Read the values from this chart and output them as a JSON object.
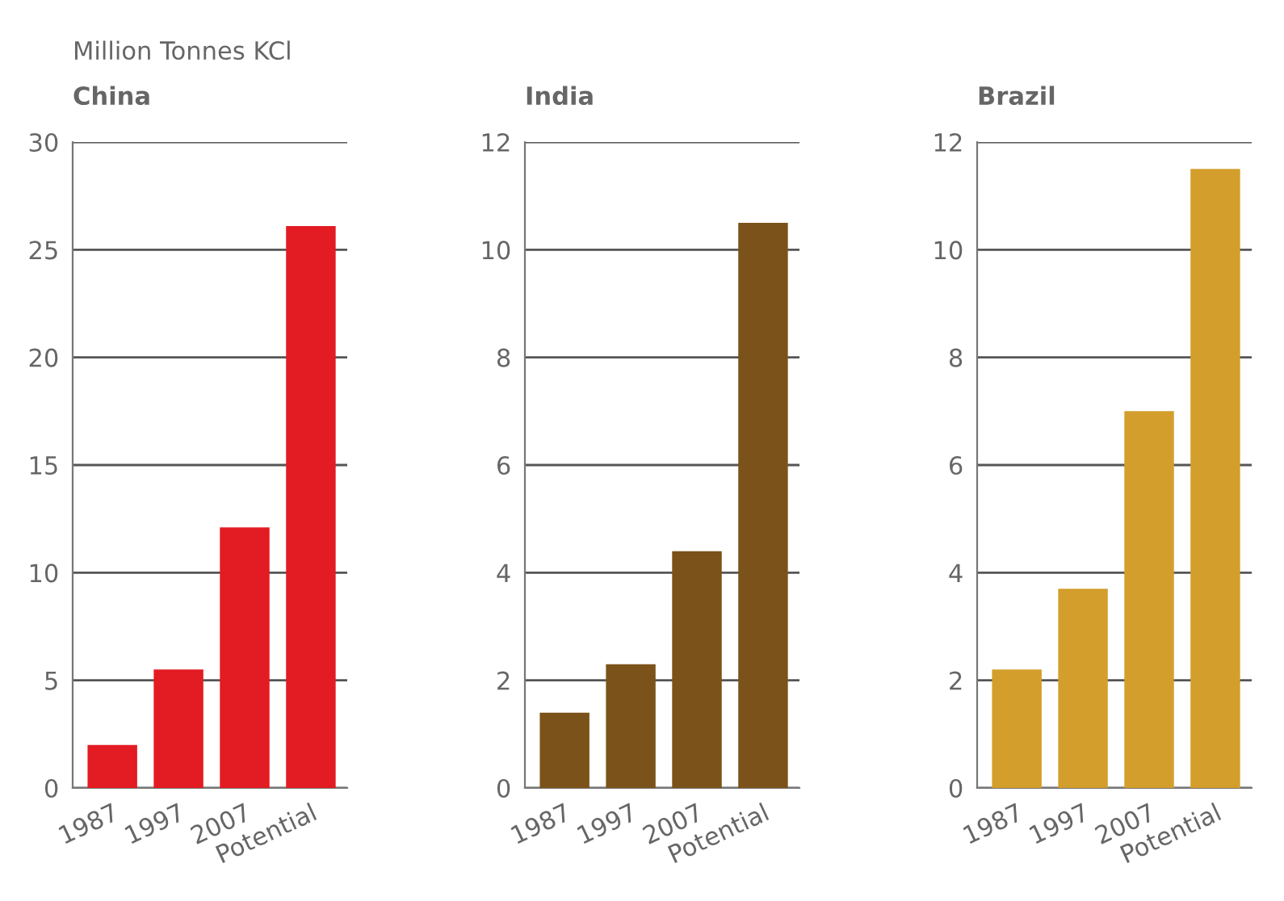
{
  "chart_data": [
    {
      "type": "bar",
      "title": "China",
      "ylabel": "Million Tonnes KCl",
      "categories": [
        "1987",
        "1997",
        "2007",
        "Potential"
      ],
      "values": [
        2.0,
        5.5,
        12.1,
        26.1
      ],
      "color": "#e31b23",
      "ylim": [
        0,
        30
      ],
      "yticks": [
        0,
        5,
        10,
        15,
        20,
        25,
        30
      ],
      "grid": "y"
    },
    {
      "type": "bar",
      "title": "India",
      "categories": [
        "1987",
        "1997",
        "2007",
        "Potential"
      ],
      "values": [
        1.4,
        2.3,
        4.4,
        10.5
      ],
      "color": "#7b5219",
      "ylim": [
        0,
        12
      ],
      "yticks": [
        0,
        2,
        4,
        6,
        8,
        10,
        12
      ],
      "grid": "y"
    },
    {
      "type": "bar",
      "title": "Brazil",
      "categories": [
        "1987",
        "1997",
        "2007",
        "Potential"
      ],
      "values": [
        2.2,
        3.7,
        7.0,
        11.5
      ],
      "color": "#d39e2b",
      "ylim": [
        0,
        12
      ],
      "yticks": [
        0,
        2,
        4,
        6,
        8,
        10,
        12
      ],
      "grid": "y"
    }
  ]
}
